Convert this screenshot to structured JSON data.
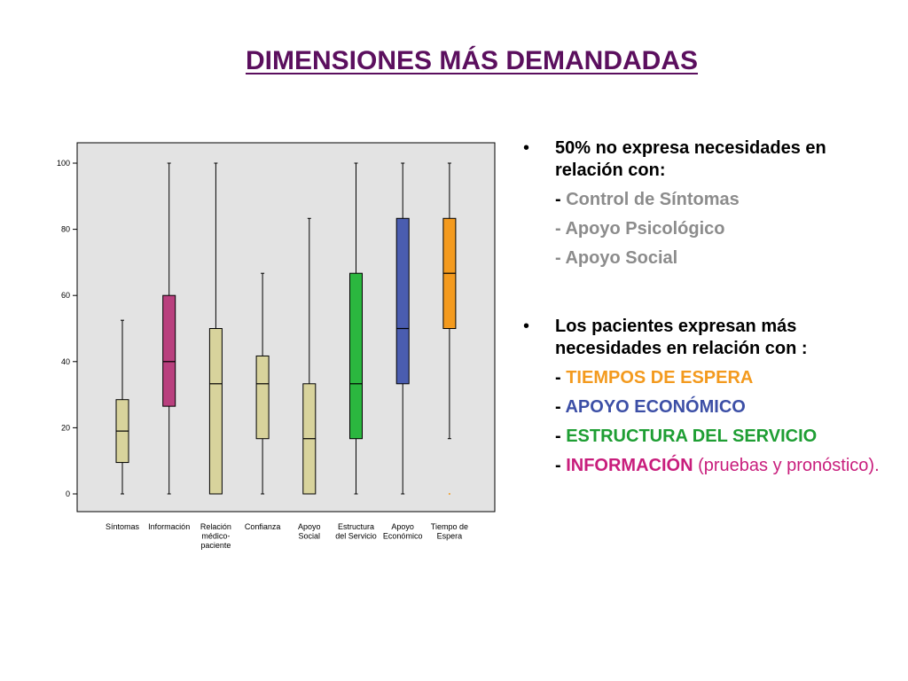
{
  "slide": {
    "title": "DIMENSIONES MÁS DEMANDADAS"
  },
  "bullets": {
    "first": {
      "text": "50% no expresa necesidades en relación con:",
      "items": [
        {
          "dash": "- ",
          "label": "Control de Síntomas"
        },
        {
          "dash": "- ",
          "label": "Apoyo Psicológico"
        },
        {
          "dash": "- ",
          "label": "Apoyo Social"
        }
      ]
    },
    "second": {
      "text": "Los pacientes expresan más necesidades en relación con :",
      "items": [
        {
          "dash": "- ",
          "label": "TIEMPOS DE ESPERA",
          "extra": ""
        },
        {
          "dash": "- ",
          "label": "APOYO ECONÓMICO",
          "extra": ""
        },
        {
          "dash": "- ",
          "label": "ESTRUCTURA DEL SERVICIO",
          "extra": ""
        },
        {
          "dash": "- ",
          "label": "INFORMACIÓN",
          "extra": " (pruebas y pronóstico)."
        }
      ]
    }
  },
  "chart_data": {
    "type": "boxplot",
    "ylim": [
      0,
      100
    ],
    "yticks": [
      0,
      20,
      40,
      60,
      80,
      100
    ],
    "grid": false,
    "background": "#e3e3e3",
    "categories": [
      {
        "label": [
          "Síntomas"
        ],
        "min": 0,
        "q1": 9.5,
        "median": 19,
        "q3": 28.5,
        "max": 52.5,
        "color": "#d8d39c"
      },
      {
        "label": [
          "Información"
        ],
        "min": 0,
        "q1": 26.5,
        "median": 40,
        "q3": 60,
        "max": 100,
        "color": "#b9407e"
      },
      {
        "label": [
          "Relación",
          "médico-",
          "paciente"
        ],
        "min": 0,
        "q1": 0,
        "median": 33.3,
        "q3": 50,
        "max": 100,
        "color": "#d8d39c"
      },
      {
        "label": [
          "Confianza"
        ],
        "min": 0,
        "q1": 16.7,
        "median": 33.3,
        "q3": 41.7,
        "max": 66.7,
        "color": "#d8d39c"
      },
      {
        "label": [
          "Apoyo",
          "Social"
        ],
        "min": 0,
        "q1": 0,
        "median": 16.7,
        "q3": 33.3,
        "max": 83.3,
        "color": "#d8d39c"
      },
      {
        "label": [
          "Estructura",
          "del Servicio"
        ],
        "min": 0,
        "q1": 16.7,
        "median": 33.3,
        "q3": 66.7,
        "max": 100,
        "color": "#2bb73f"
      },
      {
        "label": [
          "Apoyo",
          "Económico"
        ],
        "min": 0,
        "q1": 33.3,
        "median": 50,
        "q3": 83.3,
        "max": 100,
        "color": "#4a5db0"
      },
      {
        "label": [
          "Tiempo de",
          "Espera"
        ],
        "min": 16.7,
        "q1": 50,
        "median": 66.7,
        "q3": 83.3,
        "max": 100,
        "color": "#f39a1e",
        "outliers": [
          0
        ]
      }
    ]
  }
}
